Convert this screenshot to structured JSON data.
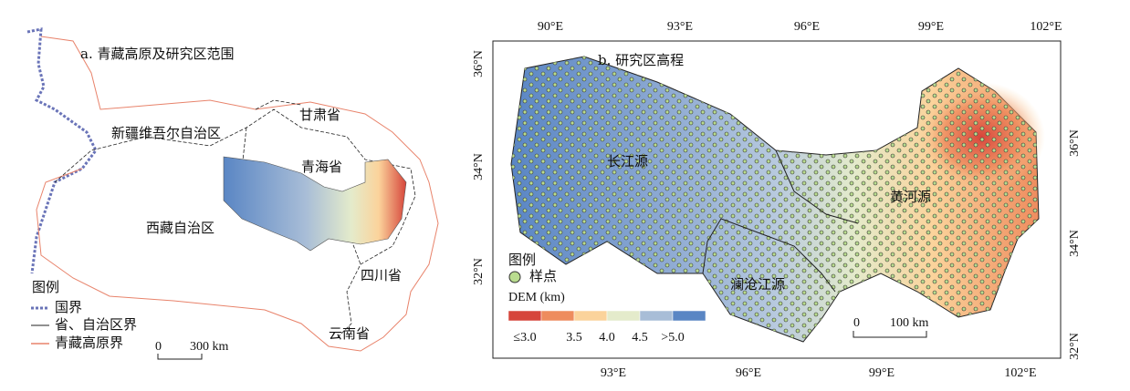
{
  "panel_a": {
    "title": "a. 青藏高原及研究区范围",
    "regions": [
      "新疆维吾尔自治区",
      "甘肃省",
      "青海省",
      "西藏自治区",
      "四川省",
      "云南省"
    ],
    "legend": {
      "title": "图例",
      "items": [
        "国界",
        "省、自治区界",
        "青藏高原界"
      ]
    },
    "scale": {
      "zero": "0",
      "length": "300 km"
    }
  },
  "panel_b": {
    "title": "b. 研究区高程",
    "top_ticks": [
      "90°E",
      "93°E",
      "96°E",
      "99°E",
      "102°E"
    ],
    "bottom_ticks": [
      "93°E",
      "96°E",
      "99°E",
      "102°E"
    ],
    "left_ticks": [
      "36°N",
      "34°N",
      "32°N"
    ],
    "right_ticks": [
      "36°N",
      "34°N",
      "32°N"
    ],
    "regions": [
      "长江源",
      "澜沧江源",
      "黄河源"
    ],
    "legend": {
      "title": "图例",
      "sample": "样点",
      "dem_title": "DEM (km)",
      "dem_labels": [
        "≤3.0",
        "3.5",
        "4.0",
        "4.5",
        ">5.0"
      ],
      "dem_colors": [
        "#d6453b",
        "#ee8c5e",
        "#fbd39b",
        "#e4ebcb",
        "#a8bdd7",
        "#5a86c4"
      ]
    },
    "scale": {
      "zero": "0",
      "length": "100 km"
    }
  }
}
